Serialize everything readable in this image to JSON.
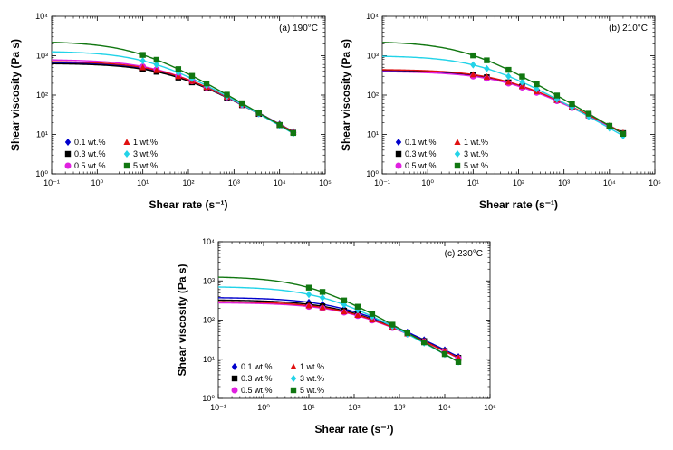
{
  "chart_data": [
    {
      "type": "line",
      "title": "(a) 190°C",
      "xlabel": "Shear rate (s⁻¹)",
      "ylabel": "Shear viscosity (Pa s)",
      "xscale": "log",
      "yscale": "log",
      "xlim": [
        0.1,
        100000
      ],
      "ylim": [
        1,
        10000
      ],
      "x_ticks": [
        "10⁻¹",
        "10⁰",
        "10¹",
        "10²",
        "10³",
        "10⁴",
        "10⁵"
      ],
      "y_ticks": [
        "10⁰",
        "10¹",
        "10²",
        "10³",
        "10⁴"
      ],
      "legend_position": "bottom-left",
      "marker_x": [
        10,
        20,
        60,
        120,
        250,
        700,
        1500,
        3500,
        10000,
        20000
      ],
      "series": [
        {
          "name": "0.1 wt.%",
          "color": "#0000cc",
          "marker": "diamond",
          "eta0": 680,
          "tau": 0.025,
          "n": 0.35
        },
        {
          "name": "0.3 wt.%",
          "color": "#000000",
          "marker": "square",
          "eta0": 640,
          "tau": 0.025,
          "n": 0.35
        },
        {
          "name": "0.5 wt.%",
          "color": "#e020e0",
          "marker": "circle",
          "eta0": 800,
          "tau": 0.035,
          "n": 0.35
        },
        {
          "name": "1 wt.%",
          "color": "#e01010",
          "marker": "triangle",
          "eta0": 720,
          "tau": 0.028,
          "n": 0.35
        },
        {
          "name": "3 wt.%",
          "color": "#22d3e8",
          "marker": "diamond",
          "eta0": 1300,
          "tau": 0.065,
          "n": 0.33
        },
        {
          "name": "5 wt.%",
          "color": "#117711",
          "marker": "square",
          "eta0": 2300,
          "tau": 0.13,
          "n": 0.32
        }
      ]
    },
    {
      "type": "line",
      "title": "(b) 210°C",
      "xlabel": "Shear rate (s⁻¹)",
      "ylabel": "Shear viscosity (Pa s)",
      "xscale": "log",
      "yscale": "log",
      "xlim": [
        0.1,
        100000
      ],
      "ylim": [
        1,
        10000
      ],
      "x_ticks": [
        "10⁻¹",
        "10⁰",
        "10¹",
        "10²",
        "10³",
        "10⁴",
        "10⁵"
      ],
      "y_ticks": [
        "10⁰",
        "10¹",
        "10²",
        "10³",
        "10⁴"
      ],
      "legend_position": "bottom-left",
      "marker_x": [
        10,
        20,
        60,
        120,
        250,
        700,
        1500,
        3500,
        10000,
        20000
      ],
      "series": [
        {
          "name": "0.1 wt.%",
          "color": "#0000cc",
          "marker": "diamond",
          "eta0": 420,
          "tau": 0.018,
          "n": 0.38
        },
        {
          "name": "0.3 wt.%",
          "color": "#000000",
          "marker": "square",
          "eta0": 440,
          "tau": 0.019,
          "n": 0.38
        },
        {
          "name": "0.5 wt.%",
          "color": "#e020e0",
          "marker": "circle",
          "eta0": 400,
          "tau": 0.017,
          "n": 0.38
        },
        {
          "name": "1 wt.%",
          "color": "#e01010",
          "marker": "triangle",
          "eta0": 450,
          "tau": 0.019,
          "n": 0.38
        },
        {
          "name": "3 wt.%",
          "color": "#22d3e8",
          "marker": "diamond",
          "eta0": 1000,
          "tau": 0.06,
          "n": 0.34
        },
        {
          "name": "5 wt.%",
          "color": "#117711",
          "marker": "square",
          "eta0": 2300,
          "tau": 0.14,
          "n": 0.32
        }
      ]
    },
    {
      "type": "line",
      "title": "(c) 230°C",
      "xlabel": "Shear rate (s⁻¹)",
      "ylabel": "Shear viscosity (Pa s)",
      "xscale": "log",
      "yscale": "log",
      "xlim": [
        0.1,
        100000
      ],
      "ylim": [
        1,
        10000
      ],
      "x_ticks": [
        "10⁻¹",
        "10⁰",
        "10¹",
        "10²",
        "10³",
        "10⁴",
        "10⁵"
      ],
      "y_ticks": [
        "10⁰",
        "10¹",
        "10²",
        "10³",
        "10⁴"
      ],
      "legend_position": "bottom-left",
      "marker_x": [
        10,
        20,
        60,
        120,
        250,
        700,
        1500,
        3500,
        10000,
        20000
      ],
      "series": [
        {
          "name": "0.1 wt.%",
          "color": "#0000cc",
          "marker": "diamond",
          "eta0": 380,
          "tau": 0.016,
          "n": 0.4
        },
        {
          "name": "0.3 wt.%",
          "color": "#000000",
          "marker": "square",
          "eta0": 330,
          "tau": 0.014,
          "n": 0.4
        },
        {
          "name": "0.5 wt.%",
          "color": "#e020e0",
          "marker": "circle",
          "eta0": 280,
          "tau": 0.011,
          "n": 0.4
        },
        {
          "name": "1 wt.%",
          "color": "#e01010",
          "marker": "triangle",
          "eta0": 300,
          "tau": 0.012,
          "n": 0.4
        },
        {
          "name": "3 wt.%",
          "color": "#22d3e8",
          "marker": "diamond",
          "eta0": 720,
          "tau": 0.045,
          "n": 0.35
        },
        {
          "name": "5 wt.%",
          "color": "#117711",
          "marker": "square",
          "eta0": 1300,
          "tau": 0.09,
          "n": 0.33
        }
      ]
    }
  ]
}
